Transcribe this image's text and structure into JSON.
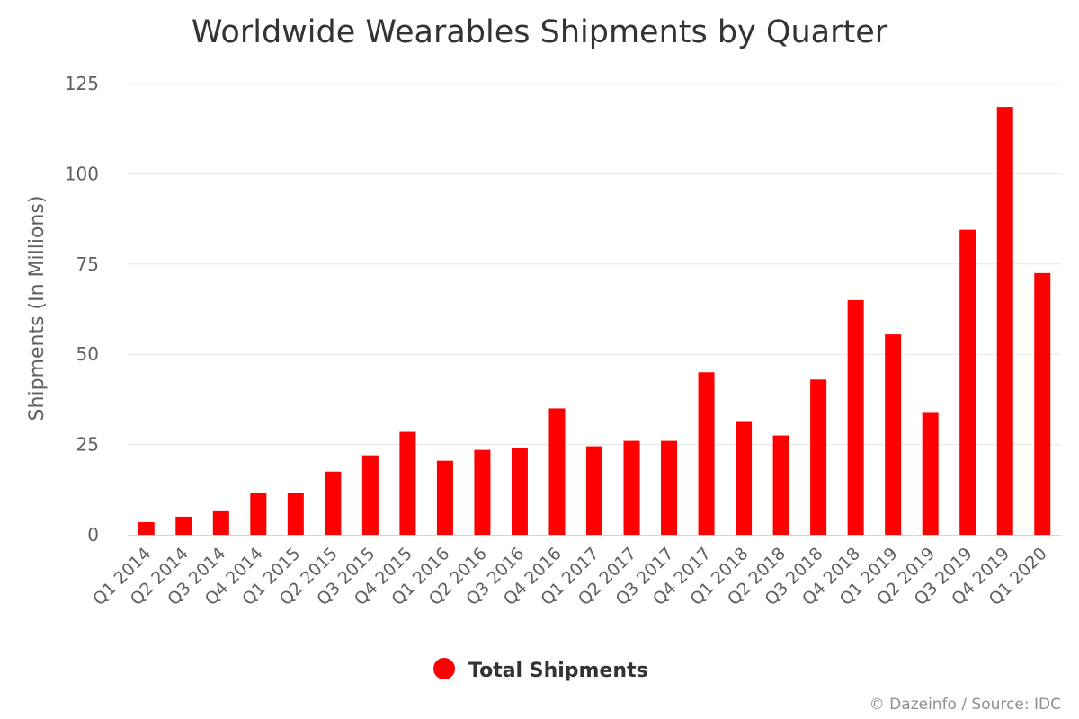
{
  "chart_data": {
    "type": "bar",
    "title": "Worldwide Wearables Shipments by Quarter",
    "xlabel": "",
    "ylabel": "Shipments (In Millions)",
    "ylim": [
      0,
      125
    ],
    "yticks": [
      0,
      25,
      50,
      75,
      100,
      125
    ],
    "grid": true,
    "legend_position": "bottom-center",
    "categories": [
      "Q1 2014",
      "Q2 2014",
      "Q3 2014",
      "Q4 2014",
      "Q1 2015",
      "Q2 2015",
      "Q3 2015",
      "Q4 2015",
      "Q1 2016",
      "Q2 2016",
      "Q3 2016",
      "Q4 2016",
      "Q1 2017",
      "Q2 2017",
      "Q3 2017",
      "Q4 2017",
      "Q1 2018",
      "Q2 2018",
      "Q3 2018",
      "Q4 2018",
      "Q1 2019",
      "Q2 2019",
      "Q3 2019",
      "Q4 2019",
      "Q1 2020"
    ],
    "series": [
      {
        "name": "Total Shipments",
        "color": "#ff0000",
        "values": [
          3.5,
          5.0,
          6.5,
          11.5,
          11.5,
          17.5,
          22.0,
          28.5,
          20.5,
          23.5,
          24.0,
          35.0,
          24.5,
          26.0,
          26.0,
          45.0,
          31.5,
          27.5,
          43.0,
          65.0,
          55.5,
          34.0,
          84.5,
          118.5,
          72.5
        ]
      }
    ],
    "credit": "© Dazeinfo / Source: IDC"
  }
}
